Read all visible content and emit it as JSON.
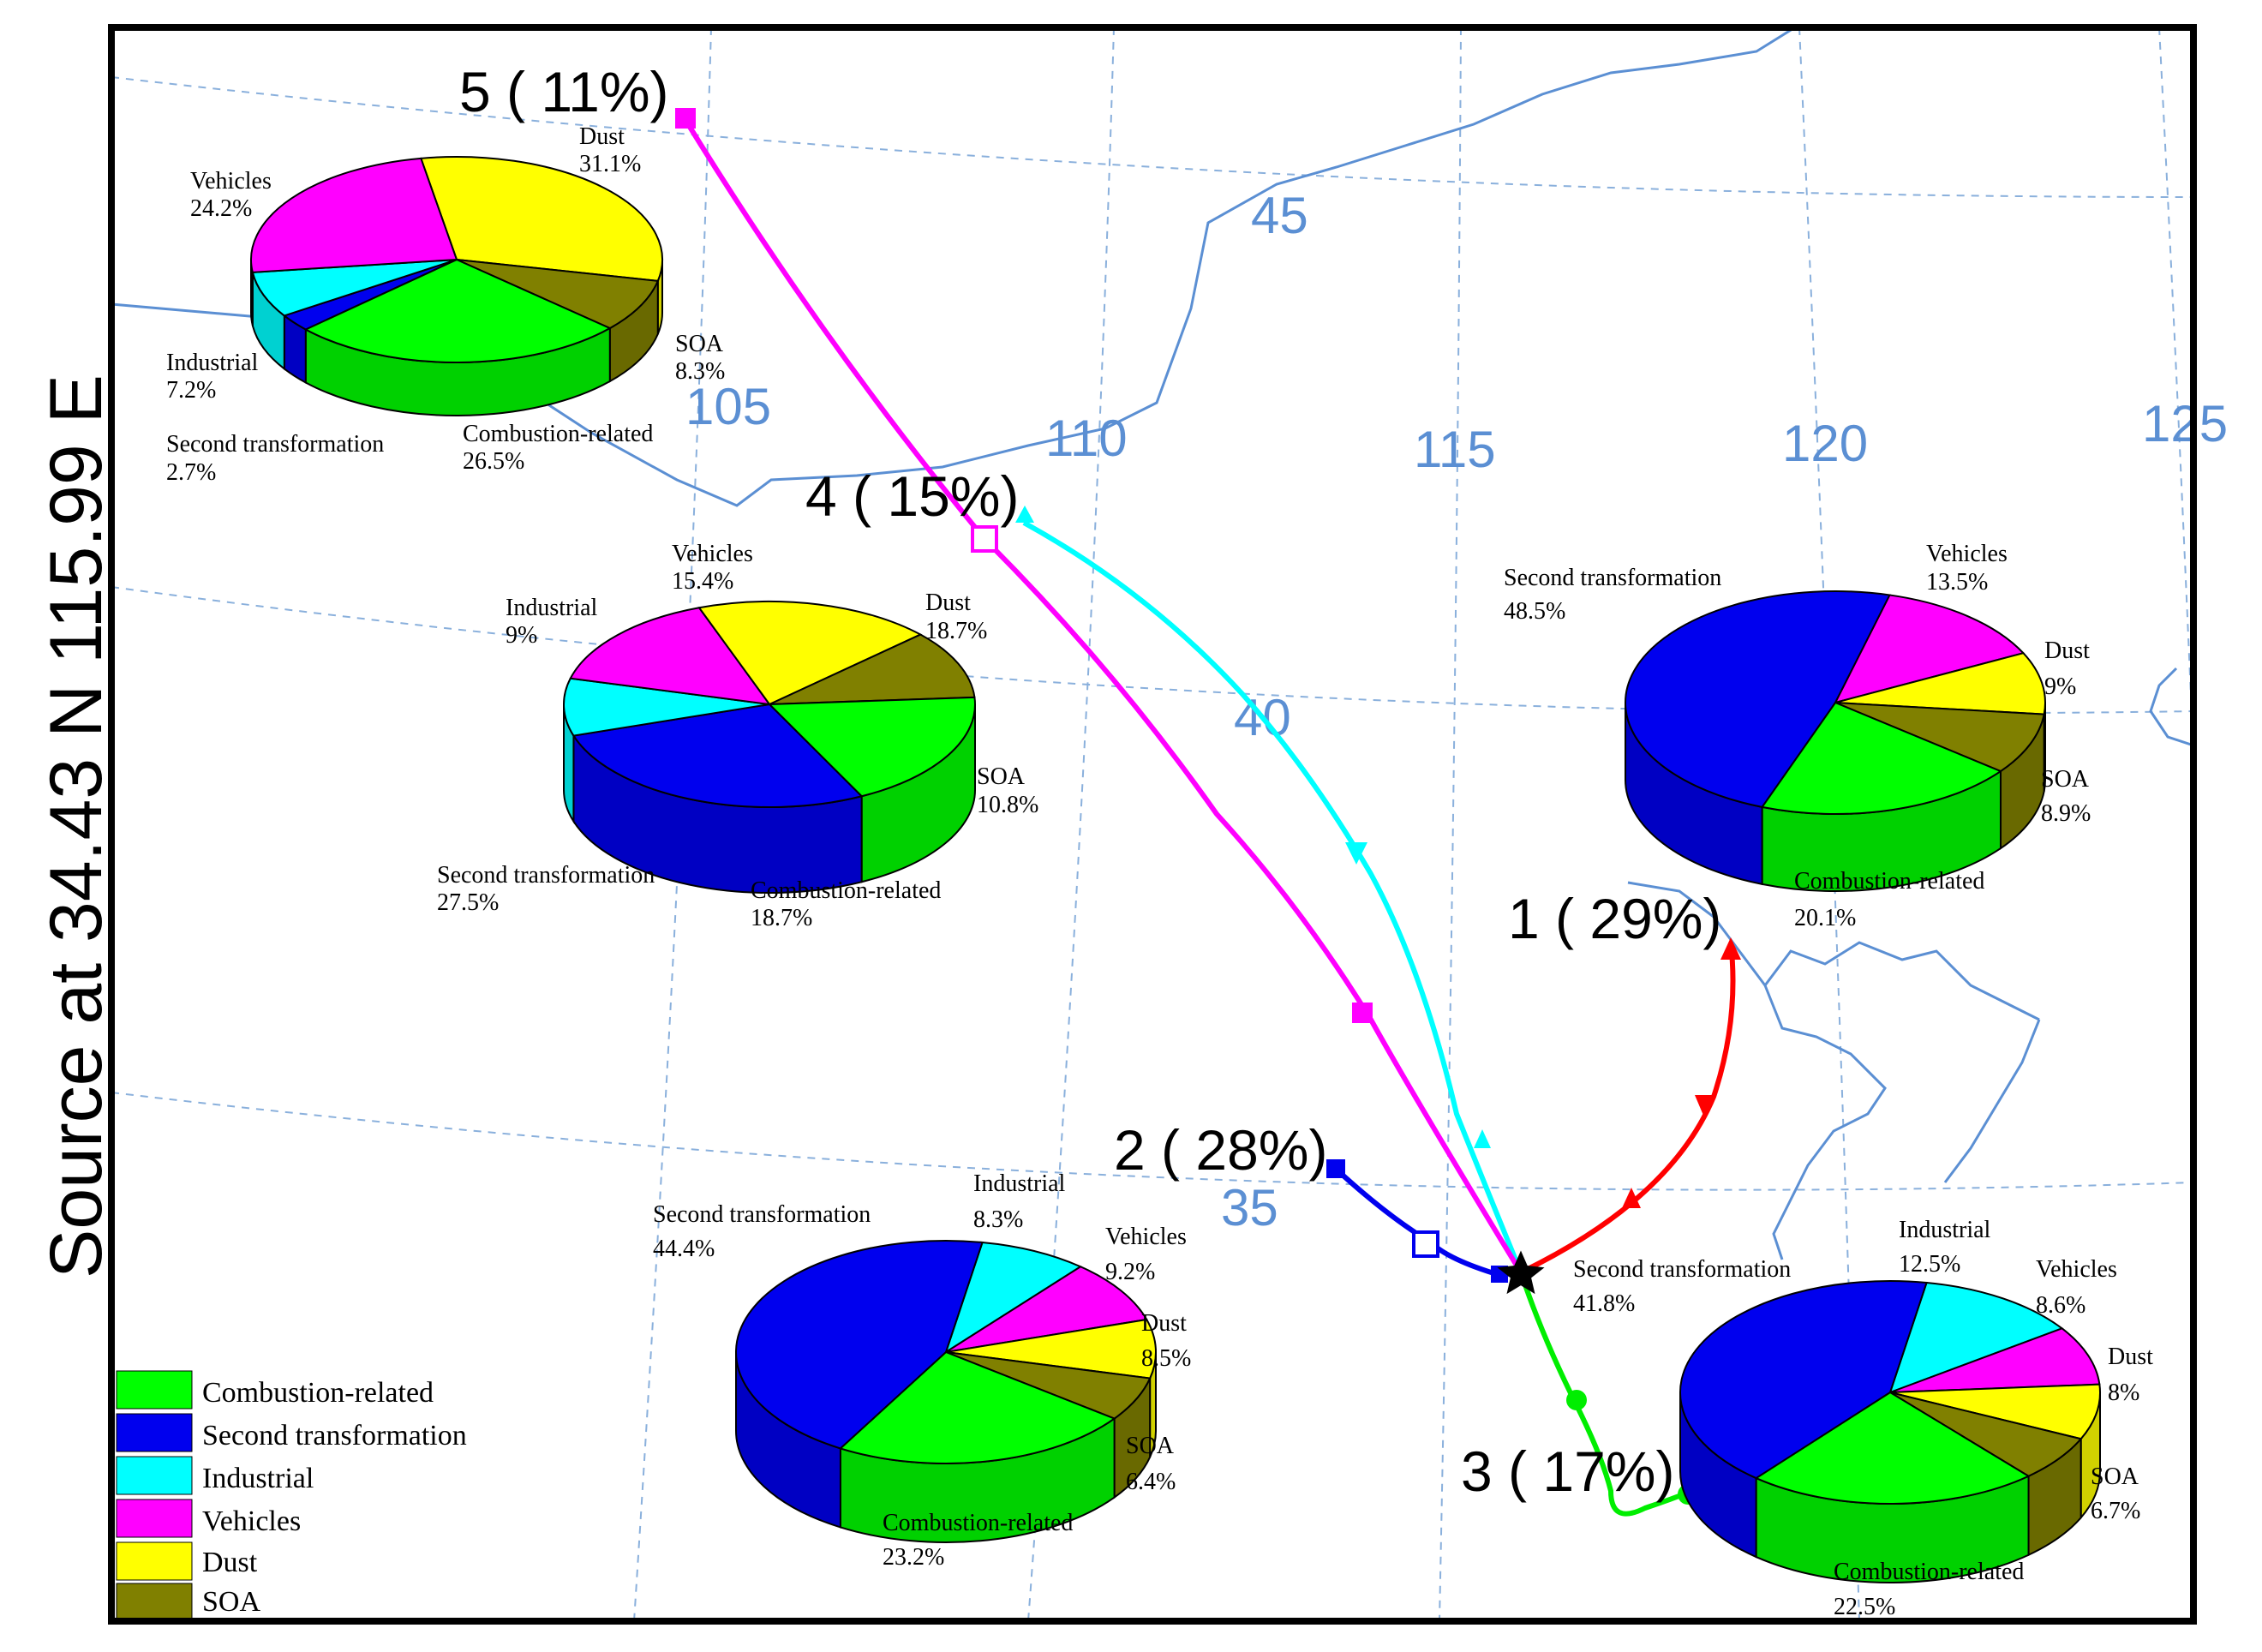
{
  "y_axis_label": "Source    at   34.43 N  115.99 E",
  "colors": {
    "Combustion-related": "#00ff00",
    "Second transformation": "#0000ee",
    "Industrial": "#00ffff",
    "Vehicles": "#ff00ff",
    "Dust": "#ffff00",
    "SOA": "#808000"
  },
  "legend": [
    "Combustion-related",
    "Second transformation",
    "Industrial",
    "Vehicles",
    "Dust",
    "SOA"
  ],
  "grid_labels": {
    "longitudes": [
      "105",
      "110",
      "115",
      "120",
      "125"
    ],
    "latitudes": [
      "45",
      "40",
      "35"
    ]
  },
  "chart_data": [
    {
      "type": "pie",
      "cluster": "5 ( 11%)",
      "slices": [
        {
          "label": "Dust",
          "value": 31.1,
          "text": "31.1%"
        },
        {
          "label": "SOA",
          "value": 8.3,
          "text": "8.3%"
        },
        {
          "label": "Combustion-related",
          "value": 26.5,
          "text": "26.5%"
        },
        {
          "label": "Second transformation",
          "value": 2.7,
          "text": "2.7%"
        },
        {
          "label": "Industrial",
          "value": 7.2,
          "text": "7.2%"
        },
        {
          "label": "Vehicles",
          "value": 24.2,
          "text": "24.2%"
        }
      ]
    },
    {
      "type": "pie",
      "cluster": "4 ( 15%)",
      "slices": [
        {
          "label": "Dust",
          "value": 18.7,
          "text": "18.7%"
        },
        {
          "label": "SOA",
          "value": 10.8,
          "text": "10.8%"
        },
        {
          "label": "Combustion-related",
          "value": 18.7,
          "text": "18.7%"
        },
        {
          "label": "Second transformation",
          "value": 27.5,
          "text": "27.5%"
        },
        {
          "label": "Industrial",
          "value": 9,
          "text": "9%"
        },
        {
          "label": "Vehicles",
          "value": 15.4,
          "text": "15.4%"
        }
      ]
    },
    {
      "type": "pie",
      "cluster": "1 ( 29%)",
      "slices": [
        {
          "label": "Vehicles",
          "value": 13.5,
          "text": "13.5%"
        },
        {
          "label": "Dust",
          "value": 9,
          "text": "9%"
        },
        {
          "label": "SOA",
          "value": 8.9,
          "text": "8.9%"
        },
        {
          "label": "Combustion-related",
          "value": 20.1,
          "text": "20.1%"
        },
        {
          "label": "Second transformation",
          "value": 48.5,
          "text": "48.5%"
        }
      ]
    },
    {
      "type": "pie",
      "cluster": "2 ( 28%)",
      "slices": [
        {
          "label": "Industrial",
          "value": 8.3,
          "text": "8.3%"
        },
        {
          "label": "Vehicles",
          "value": 9.2,
          "text": "9.2%"
        },
        {
          "label": "Dust",
          "value": 8.5,
          "text": "8.5%"
        },
        {
          "label": "SOA",
          "value": 6.4,
          "text": "6.4%"
        },
        {
          "label": "Combustion-related",
          "value": 23.2,
          "text": "23.2%"
        },
        {
          "label": "Second transformation",
          "value": 44.4,
          "text": "44.4%"
        }
      ]
    },
    {
      "type": "pie",
      "cluster": "3 ( 17%)",
      "slices": [
        {
          "label": "Industrial",
          "value": 12.5,
          "text": "12.5%"
        },
        {
          "label": "Vehicles",
          "value": 8.6,
          "text": "8.6%"
        },
        {
          "label": "Dust",
          "value": 8,
          "text": "8%"
        },
        {
          "label": "SOA",
          "value": 6.7,
          "text": "6.7%"
        },
        {
          "label": "Combustion-related",
          "value": 22.5,
          "text": "22.5%"
        },
        {
          "label": "Second transformation",
          "value": 41.8,
          "text": "41.8%"
        }
      ]
    }
  ],
  "trajectories": [
    {
      "cluster": "1 ( 29%)",
      "color": "#ff0000"
    },
    {
      "cluster": "2 ( 28%)",
      "color": "#0000ee"
    },
    {
      "cluster": "3 ( 17%)",
      "color": "#00ee00"
    },
    {
      "cluster": "4 ( 15%)",
      "color": "#00ffff"
    },
    {
      "cluster": "5 ( 11%)",
      "color": "#ff00ff"
    }
  ]
}
